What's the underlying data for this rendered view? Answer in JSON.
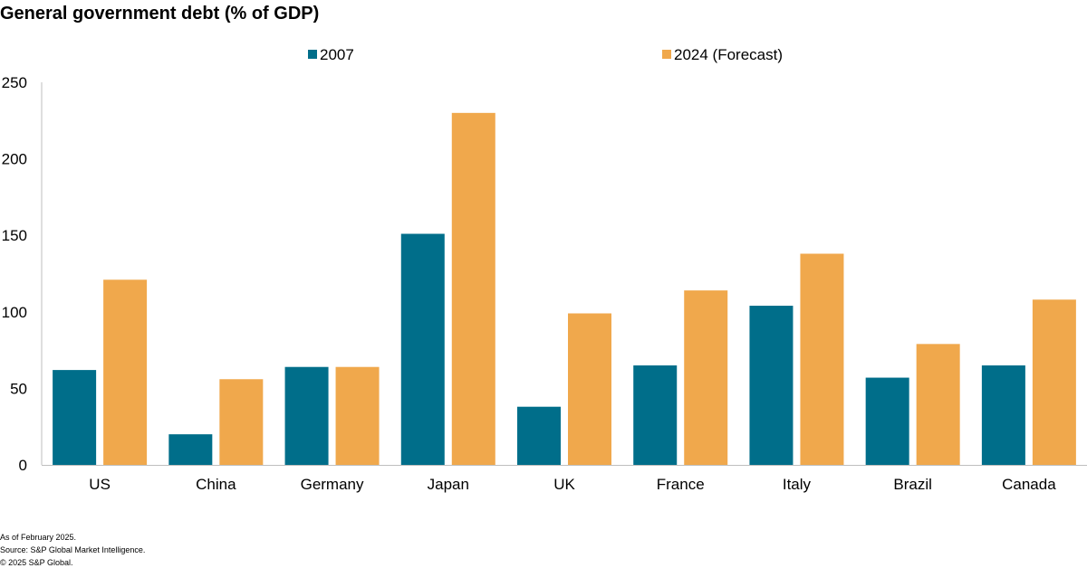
{
  "chart_data": {
    "type": "bar",
    "title": "General government debt (% of GDP)",
    "categories": [
      "US",
      "China",
      "Germany",
      "Japan",
      "UK",
      "France",
      "Italy",
      "Brazil",
      "Canada"
    ],
    "series": [
      {
        "name": "2007",
        "color": "#006e8a",
        "values": [
          62,
          20,
          64,
          151,
          38,
          65,
          104,
          57,
          65
        ]
      },
      {
        "name": "2024 (Forecast)",
        "color": "#f0a84c",
        "values": [
          121,
          56,
          64,
          230,
          99,
          114,
          138,
          79,
          108
        ]
      }
    ],
    "ylim": [
      0,
      250
    ],
    "yticks": [
      0,
      50,
      100,
      150,
      200,
      250
    ],
    "xlabel": "",
    "ylabel": "",
    "grid": false,
    "legend": "top-center"
  },
  "footnotes": {
    "line1": "As of February 2025.",
    "line2": "Source: S&P Global Market Intelligence.",
    "line3": "© 2025 S&P Global."
  }
}
